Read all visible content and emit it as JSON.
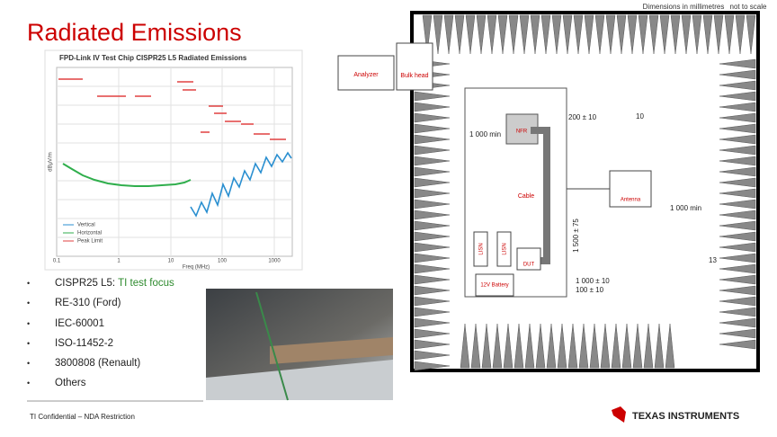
{
  "title": "Radiated Emissions",
  "emissions_plot": {
    "title": "FPD-Link IV Test Chip CISPR25 L5 Radiated Emissions",
    "y_label": "dBμV/m",
    "x_label": "Freq (MHz)",
    "x_ticks": [
      "0.1",
      "1",
      "10",
      "100",
      "1000"
    ],
    "legend": [
      "Vertical",
      "Horizontal",
      "Peak Limit"
    ]
  },
  "standards": {
    "items": [
      "CISPR25 L5:",
      "RE-310 (Ford)",
      "IEC-60001",
      "ISO-11452-2",
      "3800808  (Renault)",
      "Others"
    ],
    "note": "TI test focus"
  },
  "setup_diagram": {
    "note": "Dimensions in millimetres",
    "scale": "not to scale",
    "analyzer": "Analyzer",
    "bulk_head": "Bulk head",
    "probe": "NFR",
    "cable": "Cable",
    "antenna": "Antenna",
    "lisn": [
      "LISN",
      "LISN"
    ],
    "dut": "DUT",
    "battery": "12V Battery",
    "dimensions": [
      "200 ± 10",
      "10",
      "1 000 min",
      "1 000 min",
      "1 500 ± 75",
      "13",
      "1 000 ± 10",
      "100 ± 10"
    ]
  },
  "footer": "TI Confidential – NDA Restriction",
  "logo": "TEXAS INSTRUMENTS"
}
